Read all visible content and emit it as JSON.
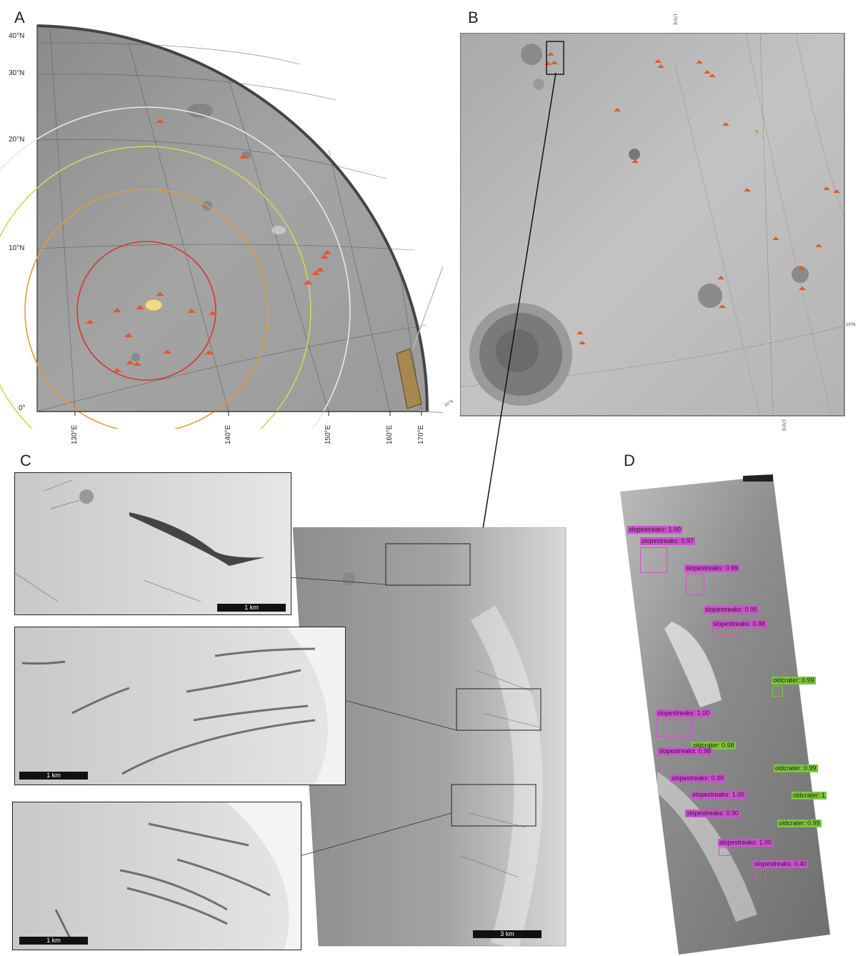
{
  "panels": {
    "a": {
      "letter": "A",
      "lat_labels": [
        "40°N",
        "30°N",
        "20°N",
        "10°N",
        "0°"
      ],
      "lon_labels": [
        "130°E",
        "140°E",
        "150°E",
        "160°E",
        "170°E"
      ]
    },
    "b": {
      "letter": "B",
      "grid_labels": [
        "170°E",
        "170°E",
        "10°N",
        "10°S"
      ]
    },
    "c": {
      "letter": "C",
      "scale_inset": "1 km",
      "scale_main": "3 km"
    },
    "d": {
      "letter": "D",
      "detections": [
        {
          "label": "slopestreaks: 1.00"
        },
        {
          "label": "slopestreaks: 0.97"
        },
        {
          "label": "slopestreaks: 0.99"
        },
        {
          "label": "slopestreaks: 0.95"
        },
        {
          "label": "slopestreaks: 0.88"
        },
        {
          "label": "oldcrater: 0.99"
        },
        {
          "label": "slopestreaks: 1.00"
        },
        {
          "label": "oldcrater: 0.98"
        },
        {
          "label": "slopestreaks: 0.98"
        },
        {
          "label": "oldcrater: 0.99"
        },
        {
          "label": "slopestreaks: 0.99"
        },
        {
          "label": "slopestreaks: 1.00"
        },
        {
          "label": "oldcrater: 1"
        },
        {
          "label": "slopestreaks: 0.90"
        },
        {
          "label": "oldcrater: 0.99"
        },
        {
          "label": "slopestreaks: 1.00"
        },
        {
          "label": "slopestreaks: 0.40"
        }
      ]
    }
  },
  "colors": {
    "marker": "#e8562a",
    "ring_red": "#d9342b",
    "ring_orange": "#e59a3a",
    "ring_yellow": "#d9d25a",
    "ring_white": "#e9e9e9",
    "slopestreak_box": "#d34fd3",
    "oldcrater_box": "#7bc63a"
  }
}
